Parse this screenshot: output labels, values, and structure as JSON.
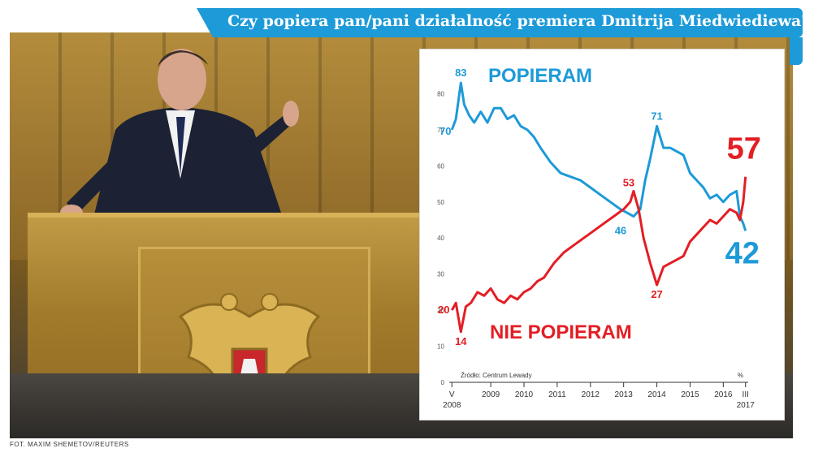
{
  "header": {
    "title": "Czy popiera pan/pani działalność premiera Dmitrija Miedwiediewa?"
  },
  "photo_credit": "FOT. MAXIM SHEMETOV/REUTERS",
  "chart_data": {
    "type": "line",
    "title": "Czy popiera pan/pani działalność premiera Dmitrija Miedwiediewa?",
    "source": "Źródło: Centrum Lewady",
    "ylim": [
      0,
      90
    ],
    "yticks": [
      "10",
      "20",
      "30",
      "40",
      "50",
      "60",
      "70",
      "80"
    ],
    "x_labels": [
      {
        "label": "V\n2008",
        "x": 2008.33
      },
      {
        "label": "2009",
        "x": 2009.5
      },
      {
        "label": "2010",
        "x": 2010.5
      },
      {
        "label": "2011",
        "x": 2011.5
      },
      {
        "label": "2012",
        "x": 2012.5
      },
      {
        "label": "2013",
        "x": 2013.5
      },
      {
        "label": "2014",
        "x": 2014.5
      },
      {
        "label": "2015",
        "x": 2015.5
      },
      {
        "label": "2016",
        "x": 2016.5
      },
      {
        "label": "III\n2017",
        "x": 2017.17
      }
    ],
    "axis_unit": "%",
    "series": [
      {
        "name": "POPIERAM",
        "color": "#1d9ad8",
        "x": [
          2008.33,
          2008.45,
          2008.6,
          2008.7,
          2008.85,
          2009.0,
          2009.2,
          2009.4,
          2009.6,
          2009.8,
          2010.0,
          2010.2,
          2010.4,
          2010.6,
          2010.8,
          2011.0,
          2011.3,
          2011.6,
          2011.9,
          2012.2,
          2012.5,
          2012.8,
          2013.1,
          2013.4,
          2013.6,
          2013.8,
          2014.0,
          2014.15,
          2014.3,
          2014.5,
          2014.7,
          2014.9,
          2015.1,
          2015.3,
          2015.5,
          2015.7,
          2015.9,
          2016.1,
          2016.3,
          2016.5,
          2016.7,
          2016.9,
          2017.0,
          2017.1,
          2017.17
        ],
        "y": [
          70,
          73,
          83,
          77,
          74,
          72,
          75,
          72,
          76,
          76,
          73,
          74,
          71,
          70,
          68,
          65,
          61,
          58,
          57,
          56,
          54,
          52,
          50,
          48,
          47,
          46,
          48,
          56,
          62,
          71,
          65,
          65,
          64,
          63,
          58,
          56,
          54,
          51,
          52,
          50,
          52,
          53,
          46,
          44,
          42
        ]
      },
      {
        "name": "NIE POPIERAM",
        "color": "#e31e24",
        "x": [
          2008.33,
          2008.45,
          2008.6,
          2008.75,
          2008.9,
          2009.1,
          2009.3,
          2009.5,
          2009.7,
          2009.9,
          2010.1,
          2010.3,
          2010.5,
          2010.7,
          2010.9,
          2011.1,
          2011.4,
          2011.7,
          2012.0,
          2012.3,
          2012.6,
          2012.9,
          2013.2,
          2013.5,
          2013.7,
          2013.8,
          2013.95,
          2014.1,
          2014.3,
          2014.5,
          2014.7,
          2014.9,
          2015.1,
          2015.3,
          2015.5,
          2015.7,
          2015.9,
          2016.1,
          2016.3,
          2016.5,
          2016.7,
          2016.9,
          2017.0,
          2017.1,
          2017.17
        ],
        "y": [
          20,
          22,
          14,
          21,
          22,
          25,
          24,
          26,
          23,
          22,
          24,
          23,
          25,
          26,
          28,
          29,
          33,
          36,
          38,
          40,
          42,
          44,
          46,
          48,
          50,
          53,
          48,
          40,
          33,
          27,
          32,
          33,
          34,
          35,
          39,
          41,
          43,
          45,
          44,
          46,
          48,
          47,
          45,
          50,
          57
        ]
      }
    ],
    "annotations": [
      {
        "text": "83",
        "series": "POPIERAM",
        "x": 2008.6,
        "y": 83
      },
      {
        "text": "70",
        "series": "POPIERAM",
        "x": 2008.33,
        "y": 70
      },
      {
        "text": "71",
        "series": "POPIERAM",
        "x": 2014.5,
        "y": 71
      },
      {
        "text": "46",
        "series": "POPIERAM",
        "x": 2013.8,
        "y": 46
      },
      {
        "text": "42",
        "series": "POPIERAM",
        "x": 2017.17,
        "y": 42
      },
      {
        "text": "20",
        "series": "NIE POPIERAM",
        "x": 2008.33,
        "y": 20
      },
      {
        "text": "14",
        "series": "NIE POPIERAM",
        "x": 2008.6,
        "y": 14
      },
      {
        "text": "53",
        "series": "NIE POPIERAM",
        "x": 2013.8,
        "y": 53
      },
      {
        "text": "27",
        "series": "NIE POPIERAM",
        "x": 2014.5,
        "y": 27
      },
      {
        "text": "57",
        "series": "NIE POPIERAM",
        "x": 2017.17,
        "y": 57
      }
    ]
  }
}
